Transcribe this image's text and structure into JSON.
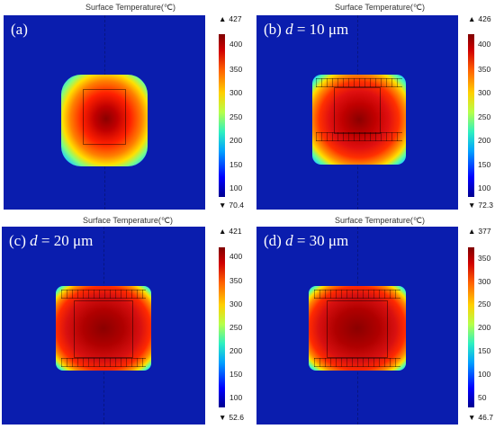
{
  "panels": [
    {
      "title": "Surface Temperature(℃)",
      "label_prefix": "(a)",
      "label_italic": "",
      "label_suffix": "",
      "max_label": "427",
      "min_label": "70.4",
      "ticks": [
        "400",
        "350",
        "300",
        "250",
        "200",
        "150",
        "100"
      ]
    },
    {
      "title": "Surface Temperature(℃)",
      "label_prefix": "(b) ",
      "label_italic": "d",
      "label_suffix": " = 10 μm",
      "max_label": "426",
      "min_label": "72.3",
      "ticks": [
        "400",
        "350",
        "300",
        "250",
        "200",
        "150",
        "100"
      ]
    },
    {
      "title": "Surface Temperature(℃)",
      "label_prefix": "(c) ",
      "label_italic": "d",
      "label_suffix": " = 20 μm",
      "max_label": "421",
      "min_label": "52.6",
      "ticks": [
        "400",
        "350",
        "300",
        "250",
        "200",
        "150",
        "100"
      ]
    },
    {
      "title": "Surface Temperature(℃)",
      "label_prefix": "(d) ",
      "label_italic": "d",
      "label_suffix": " = 30 μm",
      "max_label": "377",
      "min_label": "46.7",
      "ticks": [
        "350",
        "300",
        "250",
        "200",
        "150",
        "100",
        "50"
      ]
    }
  ],
  "colors": {
    "background": "#0a1dae",
    "hot": "#8b0000",
    "warm": "#e02010",
    "edge": "#2ef0c0"
  }
}
